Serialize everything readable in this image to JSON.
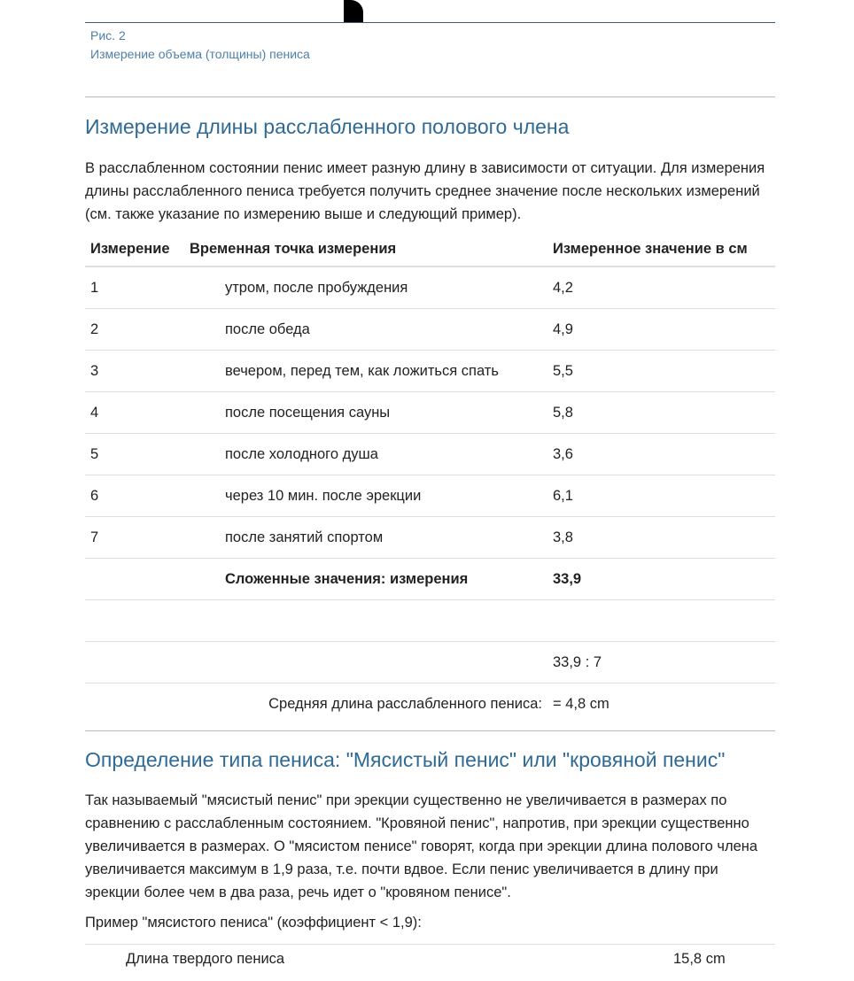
{
  "figure": {
    "number": "Рис. 2",
    "caption": "Измерение объема (толщины) пениса"
  },
  "section1": {
    "title": "Измерение длины расслабленного полового члена",
    "paragraph": "В расслабленном состоянии пенис имеет разную длину в зависимости от ситуации. Для измерения длины расслабленного пениса требуется получить среднее значение после нескольких измерений (см. также указание по измерению выше и следующий пример).",
    "table": {
      "headers": [
        "Измерение",
        "Временная точка измерения",
        "Измеренное значение в см"
      ],
      "rows": [
        [
          "1",
          "утром, после пробуждения",
          "4,2"
        ],
        [
          "2",
          "после обеда",
          "4,9"
        ],
        [
          "3",
          "вечером, перед тем, как ложиться спать",
          "5,5"
        ],
        [
          "4",
          "после посещения сауны",
          "5,8"
        ],
        [
          "5",
          "после холодного душа",
          "3,6"
        ],
        [
          "6",
          "через 10 мин. после эрекции",
          "6,1"
        ],
        [
          "7",
          "после занятий спортом",
          "3,8"
        ]
      ],
      "sum_label": "Сложенные значения: измерения",
      "sum_value": "33,9",
      "division": "33,9 : 7",
      "avg_label": "Средняя длина расслабленного пениса:",
      "avg_value": "= 4,8 cm"
    }
  },
  "section2": {
    "title": "Определение типа пениса: \"Мясистый пенис\" или \"кровяной пенис\"",
    "paragraph": "Так называемый \"мясистый пенис\" при эрекции существенно не увеличивается в размерах по сравнению с расслабленным состоянием. \"Кровяной пенис\", напротив, при эрекции существенно увеличивается в размерах. О \"мясистом пенисе\" говорят, когда при эрекции длина полового члена увеличивается максимум в 1,9 раза, т.е. почти вдвое. Если пенис увеличивается в длину при эрекции более чем в два раза, речь идет о \"кровяном пенисе\".",
    "example_title": "Пример \"мясистого пениса\" (коэффициент < 1,9):",
    "example_rows": [
      [
        "Длина твердого пениса",
        "15,8 cm"
      ]
    ]
  }
}
